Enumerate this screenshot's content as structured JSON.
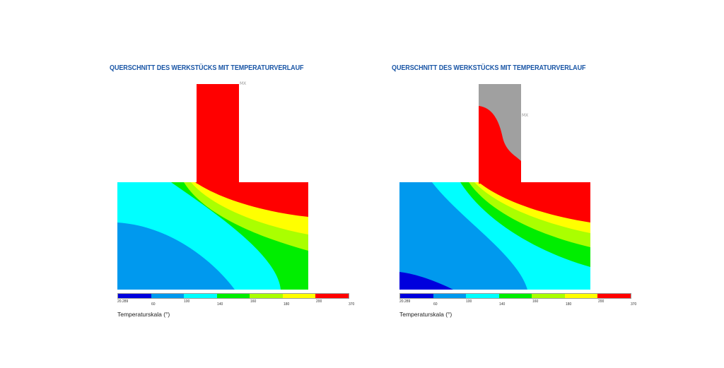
{
  "panels": [
    {
      "title": "QUERSCHNITT DES WERKSTÜCKS MIT TEMPERATURVERLAUF",
      "scale_label": "Temperaturskala (°)",
      "marker": "MX"
    },
    {
      "title": "QUERSCHNITT DES WERKSTÜCKS MIT TEMPERATURVERLAUF",
      "scale_label": "Temperaturskala (°)",
      "marker": "MX"
    }
  ],
  "scale": {
    "bands": [
      "#0000dd",
      "#0099ee",
      "#00ffff",
      "#00ee00",
      "#aaff00",
      "#ffff00",
      "#ff0000"
    ],
    "ticks": [
      "20.289",
      "60",
      "100",
      "140",
      "160",
      "180",
      "200",
      "370"
    ]
  },
  "colors": {
    "title": "#1a56a6",
    "unheated": "#a0a0a0"
  }
}
